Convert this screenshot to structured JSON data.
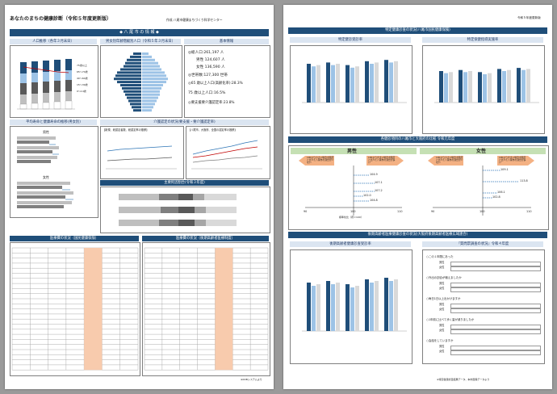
{
  "left": {
    "title": "あなたのまちの健康診断（令和５年度更新版）",
    "author": "作成 八尾市健康まちづくり科学センター",
    "city_banner": "◆ 八 尾 市 の 情 報 ◆",
    "sec_population": "人口推移（各年３月末日）",
    "sec_pyramid": "男女別年齢階級別人口（令和５年３月末日）",
    "sec_basic": "基本情報",
    "pop_legend": [
      "75歳以上",
      "65〜74歳",
      "40〜64歳",
      "15〜39歳",
      "0〜14歳"
    ],
    "basic": [
      "◎総人口:261,197 人",
      "男性 124,607 人",
      "女性 136,590 人",
      "◎世帯数:127,300 世帯",
      "◎65 歳以上人口(高齢化率):28.3%",
      "75 歳以上人口:16.5%",
      "◎要支援要介護認定率:23.8%"
    ],
    "sec_life": "平均寿命と健康寿命の推移(男女別)",
    "life_sub": [
      "男性",
      "女性"
    ],
    "sec_care": "介護認定の状況(要支援・要介護認定率)",
    "care_sub": [
      "【新規、総認定者数、総認定率の推移】",
      "【八尾市、大阪府、全国の認定率の推移】"
    ],
    "sec_death": "主要死因割合(令和３年度)",
    "sec_med": "医療費の状況（国民健康保険）",
    "sec_med2": "医療費の状況（後期高齢者医療制度）",
    "note": "※KDBシステムより"
  },
  "right": {
    "year": "令和５年度更新版",
    "sec_checkup": "特定健康診査の状況(八尾市国民健康保険)",
    "sub_checkup": [
      "特定健診受診率",
      "特定保健指導実施率"
    ],
    "x_years": [
      "H30",
      "R01",
      "R02",
      "R03",
      "R04"
    ],
    "sec_compare": "各健診項目の八尾市と大阪府の比較 令和元年度",
    "male": "男性",
    "female": "女性",
    "compare_boxes": [
      "100より小さい場合大阪府と比べて八尾市の割合が少ない",
      "100より大きい場合大阪府と比べて八尾市の割合が多い"
    ],
    "male_vals": [
      "104.9",
      "107.1",
      "107.2",
      "102.0",
      "104.8"
    ],
    "female_vals": [
      "109.1",
      "113.8",
      "106.1",
      "102.8"
    ],
    "axis_vals": [
      "90",
      "100",
      "110"
    ],
    "axis_mid": "標準化比（府＝100）",
    "sec_elderly": "後期高齢者医療健康診査の状況(大阪府後期高齢者医療広域連合)",
    "sub_elderly": [
      "後期高齢者健康診査受診率",
      "『質問票調査の状況』令和４年度"
    ],
    "q_items": [
      "○この１年間にあった",
      "○外出の割合が増えましたか",
      "○毎日1日以上出かけますか",
      "○1年前に比べて歩く量が減りましたか",
      "○会話をしていますか"
    ],
    "q_rows": [
      "男性",
      "女性"
    ],
    "footer": "※特定健康診査結果データ、本市国保データより"
  }
}
